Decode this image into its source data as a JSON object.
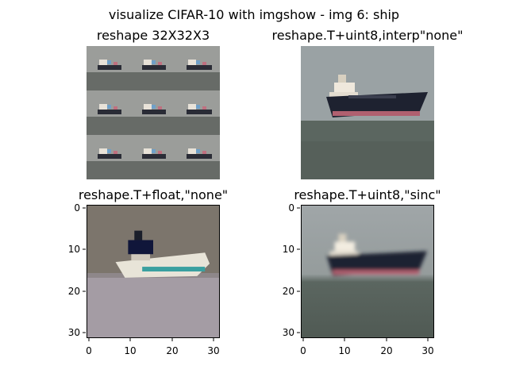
{
  "figure": {
    "suptitle": "visualize CIFAR-10 with imgshow - img 6: ship"
  },
  "subplots": [
    {
      "title": "reshape 32X32X3",
      "axes_visible": false
    },
    {
      "title": "reshape.T+uint8,interp\"none\"",
      "axes_visible": false
    },
    {
      "title": "reshape.T+float,\"none\"",
      "axes_visible": true,
      "xticks": [
        "0",
        "10",
        "20",
        "30"
      ],
      "yticks": [
        "0",
        "10",
        "20",
        "30"
      ]
    },
    {
      "title": "reshape.T+uint8,\"sinc\"",
      "axes_visible": true,
      "xticks": [
        "0",
        "10",
        "20",
        "30"
      ],
      "yticks": [
        "0",
        "10",
        "20",
        "30"
      ]
    }
  ],
  "colors": {
    "sky": "#9aa2a4",
    "sea": "#5b6660",
    "hull_dark": "#1e2230",
    "hull_red": "#b06070",
    "superstructure": "#efe8dc",
    "float_bg": "#7c756c",
    "float_sea": "#a49ca4"
  }
}
